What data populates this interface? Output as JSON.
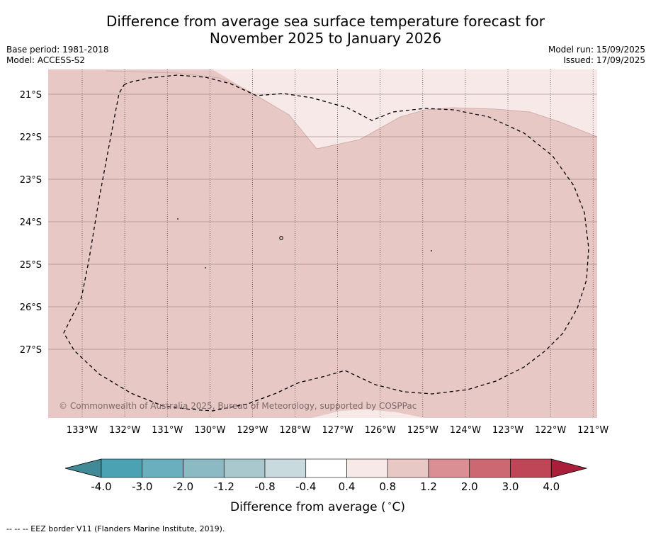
{
  "title_line1": "Difference from average sea surface temperature forecast for",
  "title_line2": "November 2025 to January 2026",
  "meta_left": {
    "base_period": "Base period: 1981-2018",
    "model": "Model: ACCESS-S2"
  },
  "meta_right": {
    "model_run": "Model run: 15/09/2025",
    "issued": "Issued: 17/09/2025"
  },
  "map": {
    "lon_range": [
      -133.8,
      -120.9
    ],
    "lat_range": [
      -28.3,
      -20.5
    ],
    "lat_ticks": [
      {
        "lat": -21,
        "label": "21°S"
      },
      {
        "lat": -22,
        "label": "22°S"
      },
      {
        "lat": -23,
        "label": "23°S"
      },
      {
        "lat": -24,
        "label": "24°S"
      },
      {
        "lat": -25,
        "label": "25°S"
      },
      {
        "lat": -26,
        "label": "26°S"
      },
      {
        "lat": -27,
        "label": "27°S"
      }
    ],
    "lon_ticks": [
      {
        "lon": -133,
        "label": "133°W"
      },
      {
        "lon": -132,
        "label": "132°W"
      },
      {
        "lon": -131,
        "label": "131°W"
      },
      {
        "lon": -130,
        "label": "130°W"
      },
      {
        "lon": -129,
        "label": "129°W"
      },
      {
        "lon": -128,
        "label": "128°W"
      },
      {
        "lon": -127,
        "label": "127°W"
      },
      {
        "lon": -126,
        "label": "126°W"
      },
      {
        "lon": -125,
        "label": "125°W"
      },
      {
        "lon": -124,
        "label": "124°W"
      },
      {
        "lon": -123,
        "label": "123°W"
      },
      {
        "lon": -122,
        "label": "122°W"
      },
      {
        "lon": -121,
        "label": "121°W"
      }
    ],
    "dominant_anomaly_class": "0.8 to 1.2",
    "light_anomaly_class": "0.4 to 0.8",
    "copyright": "© Commonwealth of Australia 2025, Bureau of Meteorology, supported by COSPPac"
  },
  "colorbar": {
    "labels": [
      "-4.0",
      "-3.0",
      "-2.0",
      "-1.2",
      "-0.8",
      "-0.4",
      "0.4",
      "0.8",
      "1.2",
      "2.0",
      "3.0",
      "4.0"
    ],
    "colors": [
      "#4aa2b3",
      "#6aafbd",
      "#8bbac4",
      "#a8c8cd",
      "#c8dade",
      "#ffffff",
      "#f6e9e8",
      "#e8c8c4",
      "#d98f94",
      "#cb6872",
      "#bf4656"
    ],
    "under_color": "#3f8a96",
    "over_color": "#a91f3a",
    "title": "Difference from average (",
    "unit": "C)"
  },
  "footnote": "--  --  -- EEZ border V11 (Flanders Marine Institute, 2019)."
}
